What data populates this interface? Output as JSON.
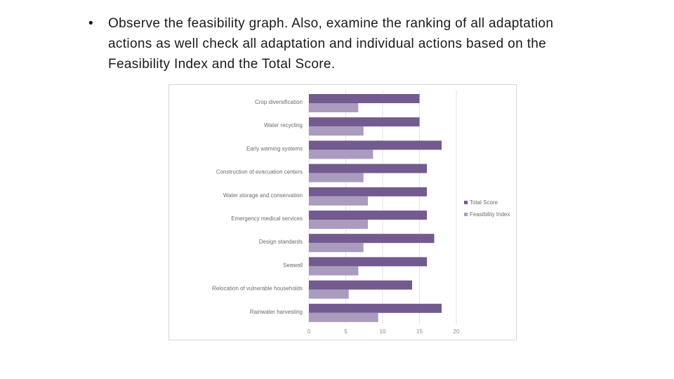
{
  "slide": {
    "bullet_symbol": "•",
    "bullet_text": "Observe the feasibility graph. Also, examine the ranking of all adaptation actions as well check all adaptation and individual actions based on the Feasibility Index and the Total Score."
  },
  "chart_data": {
    "type": "bar",
    "orientation": "horizontal",
    "categories": [
      "Crop diversification",
      "Water recycling",
      "Early warning systems",
      "Construction of evacuation centers",
      "Water storage and conservation",
      "Emergency medical services",
      "Design standards",
      "Seawall",
      "Relocation of vulnerable households",
      "Rainwater harvesting"
    ],
    "series": [
      {
        "name": "Total Score",
        "color": "#735a8f",
        "values": [
          15,
          15,
          18,
          16,
          16,
          16,
          17,
          16,
          14,
          18
        ]
      },
      {
        "name": "Feasibility Index",
        "color": "#ab9bbf",
        "values": [
          6.7,
          7.4,
          8.7,
          7.4,
          8.0,
          8.0,
          7.4,
          6.7,
          5.4,
          9.4
        ]
      }
    ],
    "xlim": [
      0,
      20
    ],
    "xticks": [
      "0",
      "5",
      "10",
      "15",
      "20"
    ],
    "gridlines": true,
    "legend_position": "right",
    "title": "",
    "xlabel": "",
    "ylabel": ""
  }
}
